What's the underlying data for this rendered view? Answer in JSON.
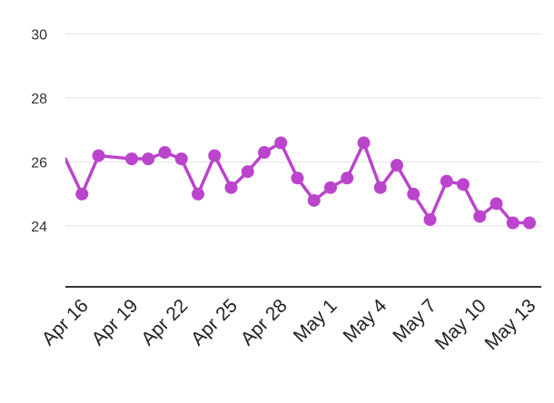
{
  "chart_data": {
    "type": "line",
    "x": [
      "Apr 15",
      "Apr 16",
      "Apr 17",
      "Apr 18",
      "Apr 19",
      "Apr 20",
      "Apr 21",
      "Apr 22",
      "Apr 23",
      "Apr 24",
      "Apr 25",
      "Apr 26",
      "Apr 27",
      "Apr 28",
      "Apr 29",
      "Apr 30",
      "May 1",
      "May 2",
      "May 3",
      "May 4",
      "May 5",
      "May 6",
      "May 7",
      "May 8",
      "May 9",
      "May 10",
      "May 11",
      "May 12",
      "May 13"
    ],
    "series": [
      {
        "values": [
          26.1,
          25.0,
          26.2,
          null,
          26.1,
          26.1,
          26.3,
          26.1,
          25.0,
          26.2,
          25.2,
          25.7,
          26.3,
          26.6,
          25.5,
          24.8,
          25.2,
          25.5,
          26.6,
          25.2,
          25.9,
          25.0,
          24.2,
          25.4,
          25.3,
          24.3,
          24.7,
          24.1,
          24.1
        ],
        "color": "#bb44cc"
      }
    ],
    "x_tick_labels": [
      "Apr 16",
      "Apr 19",
      "Apr 22",
      "Apr 25",
      "Apr 28",
      "May 1",
      "May 4",
      "May 7",
      "May 10",
      "May 13"
    ],
    "y_tick_labels": [
      "24",
      "26",
      "28",
      "30"
    ],
    "y_ticks": [
      24,
      26,
      28,
      30
    ],
    "ylim": [
      22.1,
      30.1
    ],
    "grid": true,
    "legend": "none"
  }
}
